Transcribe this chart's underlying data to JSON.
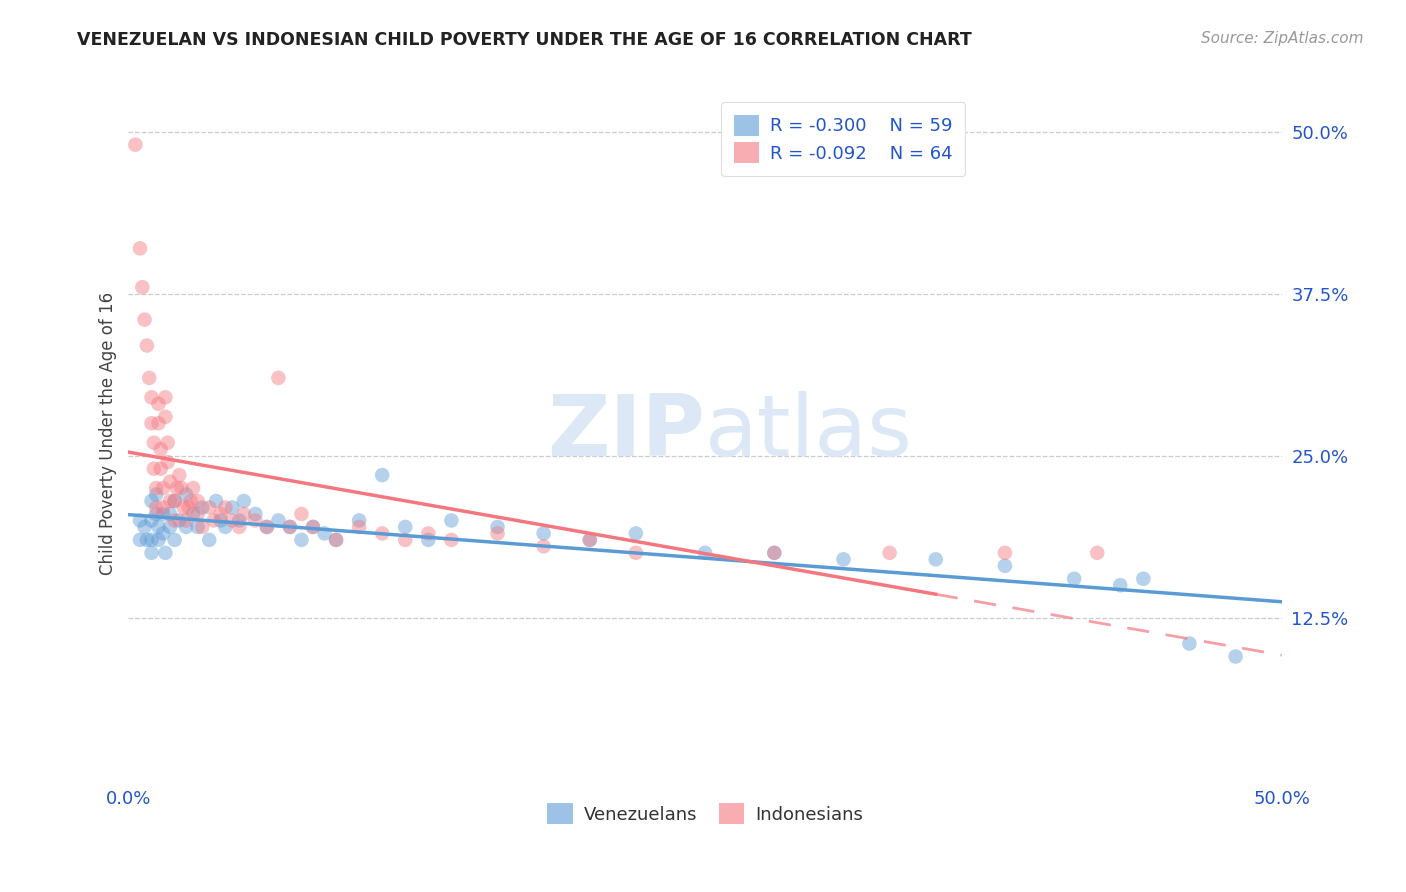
{
  "title": "VENEZUELAN VS INDONESIAN CHILD POVERTY UNDER THE AGE OF 16 CORRELATION CHART",
  "source": "Source: ZipAtlas.com",
  "ylabel": "Child Poverty Under the Age of 16",
  "xlim": [
    0.0,
    0.5
  ],
  "ylim": [
    0.0,
    0.535
  ],
  "venezuelan_color": "#5b9bd5",
  "indonesian_color": "#f4777f",
  "venezuelan_R": -0.3,
  "venezuelan_N": 59,
  "indonesian_R": -0.092,
  "indonesian_N": 64,
  "venezuelan_scatter": [
    [
      0.005,
      0.2
    ],
    [
      0.005,
      0.185
    ],
    [
      0.007,
      0.195
    ],
    [
      0.008,
      0.185
    ],
    [
      0.01,
      0.215
    ],
    [
      0.01,
      0.2
    ],
    [
      0.01,
      0.185
    ],
    [
      0.01,
      0.175
    ],
    [
      0.012,
      0.22
    ],
    [
      0.012,
      0.205
    ],
    [
      0.013,
      0.195
    ],
    [
      0.013,
      0.185
    ],
    [
      0.015,
      0.205
    ],
    [
      0.015,
      0.19
    ],
    [
      0.016,
      0.175
    ],
    [
      0.018,
      0.205
    ],
    [
      0.018,
      0.195
    ],
    [
      0.02,
      0.215
    ],
    [
      0.02,
      0.185
    ],
    [
      0.022,
      0.2
    ],
    [
      0.025,
      0.22
    ],
    [
      0.025,
      0.195
    ],
    [
      0.028,
      0.205
    ],
    [
      0.03,
      0.195
    ],
    [
      0.032,
      0.21
    ],
    [
      0.035,
      0.185
    ],
    [
      0.038,
      0.215
    ],
    [
      0.04,
      0.2
    ],
    [
      0.042,
      0.195
    ],
    [
      0.045,
      0.21
    ],
    [
      0.048,
      0.2
    ],
    [
      0.05,
      0.215
    ],
    [
      0.055,
      0.205
    ],
    [
      0.06,
      0.195
    ],
    [
      0.065,
      0.2
    ],
    [
      0.07,
      0.195
    ],
    [
      0.075,
      0.185
    ],
    [
      0.08,
      0.195
    ],
    [
      0.085,
      0.19
    ],
    [
      0.09,
      0.185
    ],
    [
      0.1,
      0.2
    ],
    [
      0.11,
      0.235
    ],
    [
      0.12,
      0.195
    ],
    [
      0.13,
      0.185
    ],
    [
      0.14,
      0.2
    ],
    [
      0.16,
      0.195
    ],
    [
      0.18,
      0.19
    ],
    [
      0.2,
      0.185
    ],
    [
      0.22,
      0.19
    ],
    [
      0.25,
      0.175
    ],
    [
      0.28,
      0.175
    ],
    [
      0.31,
      0.17
    ],
    [
      0.35,
      0.17
    ],
    [
      0.38,
      0.165
    ],
    [
      0.41,
      0.155
    ],
    [
      0.43,
      0.15
    ],
    [
      0.44,
      0.155
    ],
    [
      0.46,
      0.105
    ],
    [
      0.48,
      0.095
    ]
  ],
  "indonesian_scatter": [
    [
      0.003,
      0.49
    ],
    [
      0.005,
      0.41
    ],
    [
      0.006,
      0.38
    ],
    [
      0.007,
      0.355
    ],
    [
      0.008,
      0.335
    ],
    [
      0.009,
      0.31
    ],
    [
      0.01,
      0.295
    ],
    [
      0.01,
      0.275
    ],
    [
      0.011,
      0.26
    ],
    [
      0.011,
      0.24
    ],
    [
      0.012,
      0.225
    ],
    [
      0.012,
      0.21
    ],
    [
      0.013,
      0.29
    ],
    [
      0.013,
      0.275
    ],
    [
      0.014,
      0.255
    ],
    [
      0.014,
      0.24
    ],
    [
      0.015,
      0.225
    ],
    [
      0.015,
      0.21
    ],
    [
      0.016,
      0.295
    ],
    [
      0.016,
      0.28
    ],
    [
      0.017,
      0.26
    ],
    [
      0.017,
      0.245
    ],
    [
      0.018,
      0.23
    ],
    [
      0.018,
      0.215
    ],
    [
      0.02,
      0.2
    ],
    [
      0.02,
      0.215
    ],
    [
      0.021,
      0.225
    ],
    [
      0.022,
      0.235
    ],
    [
      0.023,
      0.225
    ],
    [
      0.024,
      0.21
    ],
    [
      0.025,
      0.2
    ],
    [
      0.026,
      0.21
    ],
    [
      0.027,
      0.215
    ],
    [
      0.028,
      0.225
    ],
    [
      0.03,
      0.215
    ],
    [
      0.03,
      0.205
    ],
    [
      0.032,
      0.195
    ],
    [
      0.035,
      0.21
    ],
    [
      0.037,
      0.2
    ],
    [
      0.04,
      0.205
    ],
    [
      0.042,
      0.21
    ],
    [
      0.045,
      0.2
    ],
    [
      0.048,
      0.195
    ],
    [
      0.05,
      0.205
    ],
    [
      0.055,
      0.2
    ],
    [
      0.06,
      0.195
    ],
    [
      0.065,
      0.31
    ],
    [
      0.07,
      0.195
    ],
    [
      0.075,
      0.205
    ],
    [
      0.08,
      0.195
    ],
    [
      0.09,
      0.185
    ],
    [
      0.1,
      0.195
    ],
    [
      0.11,
      0.19
    ],
    [
      0.12,
      0.185
    ],
    [
      0.13,
      0.19
    ],
    [
      0.14,
      0.185
    ],
    [
      0.16,
      0.19
    ],
    [
      0.18,
      0.18
    ],
    [
      0.2,
      0.185
    ],
    [
      0.22,
      0.175
    ],
    [
      0.28,
      0.175
    ],
    [
      0.33,
      0.175
    ],
    [
      0.38,
      0.175
    ],
    [
      0.42,
      0.175
    ]
  ],
  "background_color": "#ffffff",
  "grid_color": "#cccccc",
  "legend_text_color": "#2255cc",
  "title_color": "#222222",
  "watermark_color": "#dce8f5"
}
